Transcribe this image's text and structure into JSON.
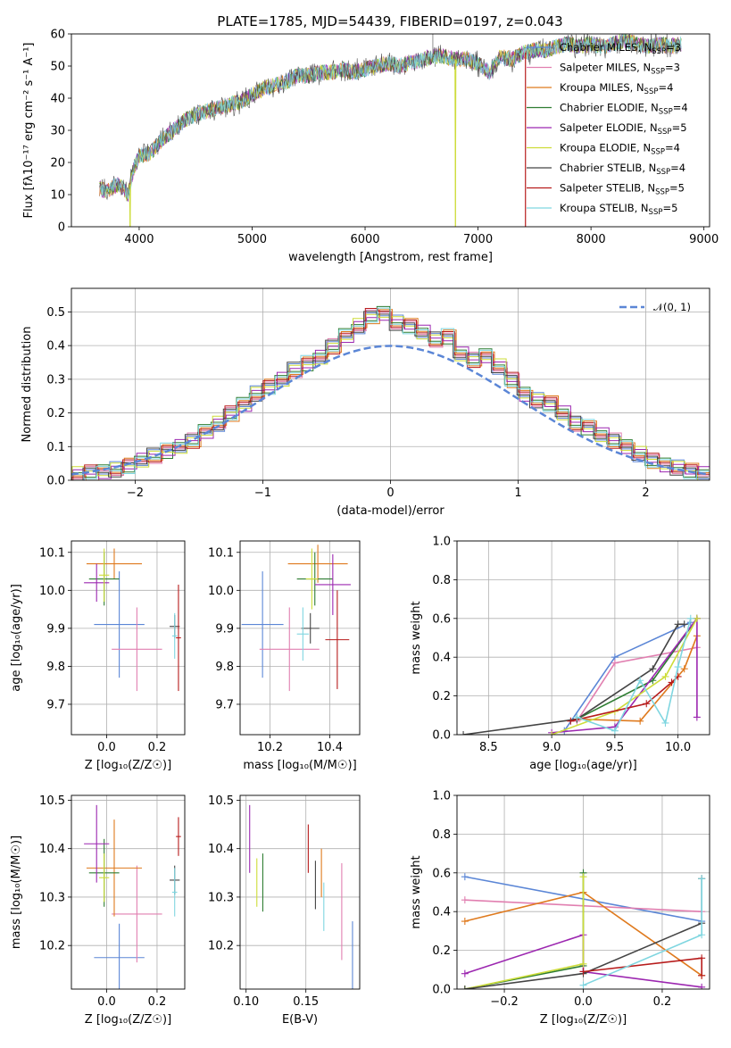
{
  "figure": {
    "title": "PLATE=1785, MJD=54439, FIBERID=0197, z=0.043"
  },
  "colors": [
    "#5b86d6",
    "#e17fb0",
    "#df7a1e",
    "#2e7d32",
    "#9c27b0",
    "#cddc39",
    "#444444",
    "#b71c1c",
    "#7fd6e0"
  ],
  "chart_data": [
    {
      "id": "spectrum",
      "type": "line",
      "title": "PLATE=1785, MJD=54439, FIBERID=0197, z=0.043",
      "xlabel": "wavelength [Angstrom, rest frame]",
      "ylabel": "Flux [fλ10⁻¹⁷ erg cm⁻² s⁻¹ A⁻¹]",
      "xlim": [
        3400,
        9050
      ],
      "ylim": [
        0,
        60
      ],
      "xticks": [
        4000,
        5000,
        6000,
        7000,
        8000,
        9000
      ],
      "yticks": [
        0,
        10,
        20,
        30,
        40,
        50,
        60
      ],
      "grid": false,
      "legend_placement": "top-right",
      "x": [
        3650,
        3700,
        3750,
        3800,
        3850,
        3900,
        3950,
        4000,
        4100,
        4200,
        4300,
        4400,
        4500,
        4600,
        4700,
        4800,
        4900,
        5000,
        5100,
        5200,
        5300,
        5400,
        5500,
        5600,
        5700,
        5800,
        5900,
        6000,
        6100,
        6200,
        6300,
        6400,
        6500,
        6600,
        6700,
        6800,
        6900,
        7000,
        7100,
        7200,
        7300,
        7400,
        7500,
        7600,
        7700,
        7800,
        7900,
        8000,
        8100,
        8200,
        8300,
        8400,
        8500,
        8600,
        8700,
        8800
      ],
      "y": [
        12,
        11,
        12,
        13,
        12,
        10,
        18,
        22,
        23,
        27,
        30,
        33,
        35,
        36,
        37,
        38,
        39,
        41,
        43,
        44,
        45,
        47,
        47,
        48,
        48,
        49,
        48,
        49,
        50,
        51,
        50,
        51,
        52,
        53,
        53,
        52,
        52,
        51,
        48,
        53,
        52,
        54,
        55,
        55,
        56,
        57,
        56,
        57,
        56,
        57,
        58,
        57,
        56,
        57,
        56,
        57
      ],
      "series": [
        {
          "name": "Chabrier MILES, N$_{SSP}$=3",
          "label": "Chabrier MILES, N",
          "sub": "SSP",
          "suffix": "=3"
        },
        {
          "name": "Salpeter MILES, N$_{SSP}$=3",
          "label": "Salpeter MILES, N",
          "sub": "SSP",
          "suffix": "=3"
        },
        {
          "name": "Kroupa MILES, N$_{SSP}$=4",
          "label": "Kroupa MILES, N",
          "sub": "SSP",
          "suffix": "=4"
        },
        {
          "name": "Chabrier ELODIE, N$_{SSP}$=4",
          "label": "Chabrier ELODIE, N",
          "sub": "SSP",
          "suffix": "=4"
        },
        {
          "name": "Salpeter ELODIE, N$_{SSP}$=5",
          "label": "Salpeter ELODIE, N",
          "sub": "SSP",
          "suffix": "=5"
        },
        {
          "name": "Kroupa ELODIE, N$_{SSP}$=4",
          "label": "Kroupa ELODIE, N",
          "sub": "SSP",
          "suffix": "=4"
        },
        {
          "name": "Chabrier STELIB, N$_{SSP}$=4",
          "label": "Chabrier STELIB, N",
          "sub": "SSP",
          "suffix": "=4"
        },
        {
          "name": "Salpeter STELIB, N$_{SSP}$=5",
          "label": "Salpeter STELIB, N",
          "sub": "SSP",
          "suffix": "=5"
        },
        {
          "name": "Kroupa STELIB, N$_{SSP}$=5",
          "label": "Kroupa STELIB, N",
          "sub": "SSP",
          "suffix": "=5"
        }
      ],
      "drops": [
        {
          "series": 5,
          "x": 3920
        },
        {
          "series": 5,
          "x": 6800
        },
        {
          "series": 7,
          "x": 7420
        }
      ]
    },
    {
      "id": "residuals",
      "type": "bar",
      "xlabel": "(data-model)/error",
      "ylabel": "Normed distribution",
      "xlim": [
        -2.5,
        2.5
      ],
      "ylim": [
        0,
        0.57
      ],
      "xticks": [
        -2,
        -1,
        0,
        1,
        2
      ],
      "yticks": [
        0.0,
        0.1,
        0.2,
        0.3,
        0.4,
        0.5
      ],
      "grid": true,
      "legend_placement": "top-right",
      "legend_label": "𝒩(0, 1)",
      "bin_start": -2.5,
      "bin_width": 0.1,
      "hist_base": [
        0.02,
        0.025,
        0.03,
        0.035,
        0.045,
        0.06,
        0.075,
        0.09,
        0.105,
        0.12,
        0.145,
        0.17,
        0.2,
        0.23,
        0.26,
        0.28,
        0.3,
        0.33,
        0.35,
        0.37,
        0.4,
        0.43,
        0.46,
        0.49,
        0.5,
        0.47,
        0.46,
        0.44,
        0.42,
        0.43,
        0.38,
        0.36,
        0.37,
        0.34,
        0.3,
        0.26,
        0.24,
        0.23,
        0.2,
        0.17,
        0.16,
        0.14,
        0.12,
        0.1,
        0.08,
        0.06,
        0.05,
        0.04,
        0.03,
        0.02
      ]
    },
    {
      "id": "age-vs-Z",
      "type": "scatter",
      "xlabel": "Z [log₁₀(Z/Z☉)]",
      "ylabel": "age  [log₁₀(age/yr)]",
      "xlim": [
        -0.14,
        0.31
      ],
      "ylim": [
        9.62,
        10.13
      ],
      "xticks": [
        0.0,
        0.2
      ],
      "yticks": [
        9.7,
        9.8,
        9.9,
        10.0,
        10.1
      ],
      "grid": true,
      "points": [
        {
          "x": 0.05,
          "y": 9.91,
          "xerr": 0.1,
          "yerr": 0.14
        },
        {
          "x": 0.12,
          "y": 9.845,
          "xerr": 0.1,
          "yerr": 0.11
        },
        {
          "x": 0.03,
          "y": 10.07,
          "xerr": 0.11,
          "yerr": 0.04
        },
        {
          "x": -0.01,
          "y": 10.03,
          "xerr": 0.06,
          "yerr": 0.07
        },
        {
          "x": -0.04,
          "y": 10.02,
          "xerr": 0.05,
          "yerr": 0.05
        },
        {
          "x": -0.01,
          "y": 10.04,
          "xerr": 0.02,
          "yerr": 0.07
        },
        {
          "x": 0.27,
          "y": 9.905,
          "xerr": 0.02,
          "yerr": 0.03
        },
        {
          "x": 0.285,
          "y": 9.875,
          "xerr": 0.01,
          "yerr": 0.14
        },
        {
          "x": 0.27,
          "y": 9.88,
          "xerr": 0.01,
          "yerr": 0.06
        }
      ]
    },
    {
      "id": "age-vs-mass",
      "type": "scatter",
      "xlabel": "mass [log₁₀(M/M☉)]",
      "ylabel": "",
      "xlim": [
        10.1,
        10.5
      ],
      "ylim": [
        9.62,
        10.13
      ],
      "xticks": [
        10.2,
        10.4
      ],
      "yticks": [
        9.7,
        9.8,
        9.9,
        10.0,
        10.1
      ],
      "grid": true,
      "points": [
        {
          "x": 10.175,
          "y": 9.91,
          "xerr": 0.07,
          "yerr": 0.14
        },
        {
          "x": 10.265,
          "y": 9.845,
          "xerr": 0.1,
          "yerr": 0.11
        },
        {
          "x": 10.36,
          "y": 10.07,
          "xerr": 0.1,
          "yerr": 0.05
        },
        {
          "x": 10.35,
          "y": 10.03,
          "xerr": 0.06,
          "yerr": 0.07
        },
        {
          "x": 10.41,
          "y": 10.015,
          "xerr": 0.06,
          "yerr": 0.08
        },
        {
          "x": 10.34,
          "y": 10.03,
          "xerr": 0.02,
          "yerr": 0.08
        },
        {
          "x": 10.335,
          "y": 9.9,
          "xerr": 0.03,
          "yerr": 0.04
        },
        {
          "x": 10.425,
          "y": 9.87,
          "xerr": 0.04,
          "yerr": 0.13
        },
        {
          "x": 10.31,
          "y": 9.885,
          "xerr": 0.02,
          "yerr": 0.07
        }
      ]
    },
    {
      "id": "weight-vs-age",
      "type": "line",
      "xlabel": "age  [log₁₀(age/yr)]",
      "ylabel": "mass weight",
      "xlim": [
        8.25,
        10.25
      ],
      "ylim": [
        0,
        1.0
      ],
      "xticks": [
        8.5,
        9.0,
        9.5,
        10.0
      ],
      "yticks": [
        0.0,
        0.2,
        0.4,
        0.6,
        0.8,
        1.0
      ],
      "grid": true,
      "series": [
        {
          "x": [
            9.1,
            9.5,
            10.1
          ],
          "y": [
            0.02,
            0.4,
            0.58
          ]
        },
        {
          "x": [
            9.2,
            9.5,
            10.15
          ],
          "y": [
            0.07,
            0.37,
            0.45
          ]
        },
        {
          "x": [
            9.2,
            9.7,
            10.05,
            10.15
          ],
          "y": [
            0.08,
            0.07,
            0.34,
            0.51
          ]
        },
        {
          "x": [
            9.2,
            9.8,
            10.15
          ],
          "y": [
            0.08,
            0.28,
            0.6
          ]
        },
        {
          "x": [
            9.0,
            9.5,
            10.15,
            10.15
          ],
          "y": [
            0.01,
            0.04,
            0.6,
            0.09
          ]
        },
        {
          "x": [
            9.0,
            9.5,
            9.9,
            10.15
          ],
          "y": [
            0.0,
            0.12,
            0.3,
            0.6
          ]
        },
        {
          "x": [
            8.3,
            9.2,
            9.8,
            10.0,
            10.05
          ],
          "y": [
            0.0,
            0.08,
            0.34,
            0.57,
            0.57
          ]
        },
        {
          "x": [
            9.15,
            9.75,
            9.95,
            10.0
          ],
          "y": [
            0.07,
            0.16,
            0.27,
            0.3
          ]
        },
        {
          "x": [
            9.2,
            9.5,
            9.7,
            9.9,
            10.0,
            10.1
          ],
          "y": [
            0.09,
            0.02,
            0.28,
            0.06,
            0.35,
            0.6
          ]
        }
      ]
    },
    {
      "id": "mass-vs-Z",
      "type": "scatter",
      "xlabel": "Z [log₁₀(Z/Z☉)]",
      "ylabel": "mass [log₁₀(M/M☉)]",
      "xlim": [
        -0.14,
        0.31
      ],
      "ylim": [
        10.11,
        10.51
      ],
      "xticks": [
        0.0,
        0.2
      ],
      "yticks": [
        10.2,
        10.3,
        10.4,
        10.5
      ],
      "grid": true,
      "points": [
        {
          "x": 0.05,
          "y": 10.175,
          "xerr": 0.1,
          "yerr": 0.07
        },
        {
          "x": 0.12,
          "y": 10.265,
          "xerr": 0.1,
          "yerr": 0.1
        },
        {
          "x": 0.03,
          "y": 10.36,
          "xerr": 0.11,
          "yerr": 0.1
        },
        {
          "x": -0.01,
          "y": 10.35,
          "xerr": 0.06,
          "yerr": 0.07
        },
        {
          "x": -0.04,
          "y": 10.41,
          "xerr": 0.05,
          "yerr": 0.08
        },
        {
          "x": -0.01,
          "y": 10.34,
          "xerr": 0.02,
          "yerr": 0.05
        },
        {
          "x": 0.27,
          "y": 10.335,
          "xerr": 0.02,
          "yerr": 0.03
        },
        {
          "x": 0.285,
          "y": 10.425,
          "xerr": 0.01,
          "yerr": 0.04
        },
        {
          "x": 0.27,
          "y": 10.31,
          "xerr": 0.01,
          "yerr": 0.05
        }
      ]
    },
    {
      "id": "mass-vs-ebv",
      "type": "scatter",
      "xlabel": "E(B-V)",
      "ylabel": "",
      "xlim": [
        0.095,
        0.195
      ],
      "ylim": [
        10.11,
        10.51
      ],
      "xticks": [
        0.1,
        0.15
      ],
      "yticks": [
        10.2,
        10.3,
        10.4,
        10.5
      ],
      "grid": true,
      "points": [
        {
          "x": 0.189,
          "y": 10.17,
          "xerr": 0.0,
          "yerr": 0.08
        },
        {
          "x": 0.18,
          "y": 10.27,
          "xerr": 0.0,
          "yerr": 0.1
        },
        {
          "x": 0.163,
          "y": 10.35,
          "xerr": 0.0,
          "yerr": 0.05
        },
        {
          "x": 0.114,
          "y": 10.33,
          "xerr": 0.0,
          "yerr": 0.06
        },
        {
          "x": 0.103,
          "y": 10.42,
          "xerr": 0.0,
          "yerr": 0.07
        },
        {
          "x": 0.109,
          "y": 10.33,
          "xerr": 0.0,
          "yerr": 0.05
        },
        {
          "x": 0.158,
          "y": 10.325,
          "xerr": 0.0,
          "yerr": 0.05
        },
        {
          "x": 0.152,
          "y": 10.4,
          "xerr": 0.0,
          "yerr": 0.05
        },
        {
          "x": 0.165,
          "y": 10.28,
          "xerr": 0.0,
          "yerr": 0.05
        }
      ]
    },
    {
      "id": "weight-vs-Z",
      "type": "line",
      "xlabel": "Z [log₁₀(Z/Z☉)]",
      "ylabel": "mass weight",
      "xlim": [
        -0.32,
        0.32
      ],
      "ylim": [
        0,
        1.0
      ],
      "xticks": [
        -0.2,
        0.0,
        0.2
      ],
      "yticks": [
        0.0,
        0.2,
        0.4,
        0.6,
        0.8,
        1.0
      ],
      "grid": true,
      "series": [
        {
          "x": [
            -0.3,
            0.3
          ],
          "y": [
            0.58,
            0.35
          ]
        },
        {
          "x": [
            -0.3,
            0.3
          ],
          "y": [
            0.46,
            0.4
          ]
        },
        {
          "x": [
            -0.3,
            0.0,
            0.3
          ],
          "y": [
            0.35,
            0.5,
            0.07
          ]
        },
        {
          "x": [
            -0.3,
            0.0,
            0.0
          ],
          "y": [
            0.0,
            0.12,
            0.6
          ]
        },
        {
          "x": [
            -0.3,
            0.0,
            0.0,
            0.3
          ],
          "y": [
            0.08,
            0.28,
            0.09,
            0.01
          ]
        },
        {
          "x": [
            -0.3,
            0.0,
            0.0
          ],
          "y": [
            0.0,
            0.13,
            0.58
          ]
        },
        {
          "x": [
            -0.3,
            0.0,
            0.3,
            0.3
          ],
          "y": [
            0.0,
            0.08,
            0.34,
            0.57
          ]
        },
        {
          "x": [
            0.0,
            0.3,
            0.3
          ],
          "y": [
            0.09,
            0.16,
            0.07
          ]
        },
        {
          "x": [
            0.0,
            0.3,
            0.3
          ],
          "y": [
            0.02,
            0.28,
            0.57
          ]
        }
      ]
    }
  ]
}
